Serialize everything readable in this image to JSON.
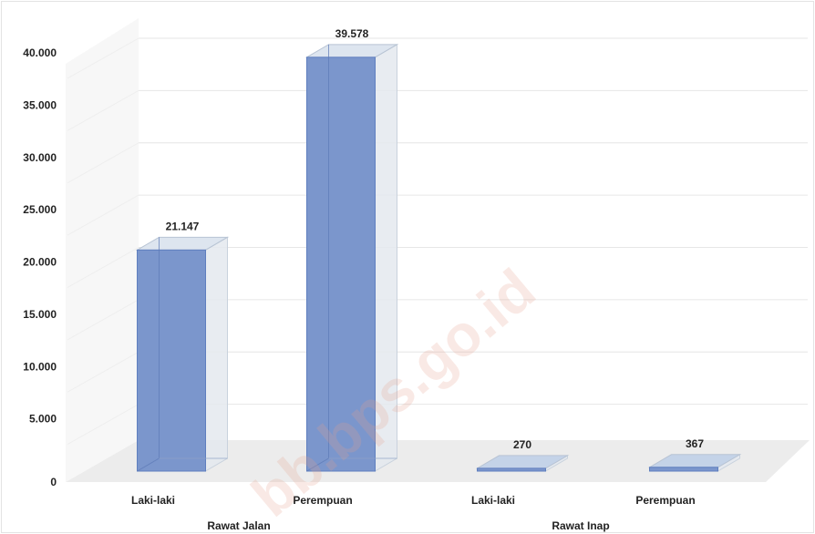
{
  "chart_data": {
    "type": "bar",
    "bar_style": "3d",
    "groups": [
      {
        "label": "Rawat Jalan",
        "categories": [
          "Laki-laki",
          "Perempuan"
        ]
      },
      {
        "label": "Rawat Inap",
        "categories": [
          "Laki-laki",
          "Perempuan"
        ]
      }
    ],
    "categories": [
      "Laki-laki",
      "Perempuan",
      "Laki-laki",
      "Perempuan"
    ],
    "values": [
      21147,
      39578,
      270,
      367
    ],
    "value_labels": [
      "21.147",
      "39.578",
      "270",
      "367"
    ],
    "ylim": [
      0,
      40000
    ],
    "yticks": [
      0,
      5000,
      10000,
      15000,
      20000,
      25000,
      30000,
      35000,
      40000
    ],
    "ytick_labels": [
      "0",
      "5.000",
      "10.000",
      "15.000",
      "20.000",
      "25.000",
      "30.000",
      "35.000",
      "40.000"
    ],
    "grid": true,
    "colors": {
      "bar_front": "#7b96cc",
      "bar_edge": "#5f7fbf",
      "bar_top": "#dde5ef",
      "glass": "#e4e9ef",
      "floor": "#ececec",
      "grid": "#e6e6e6"
    }
  },
  "watermark": "bb.bps.go.id"
}
